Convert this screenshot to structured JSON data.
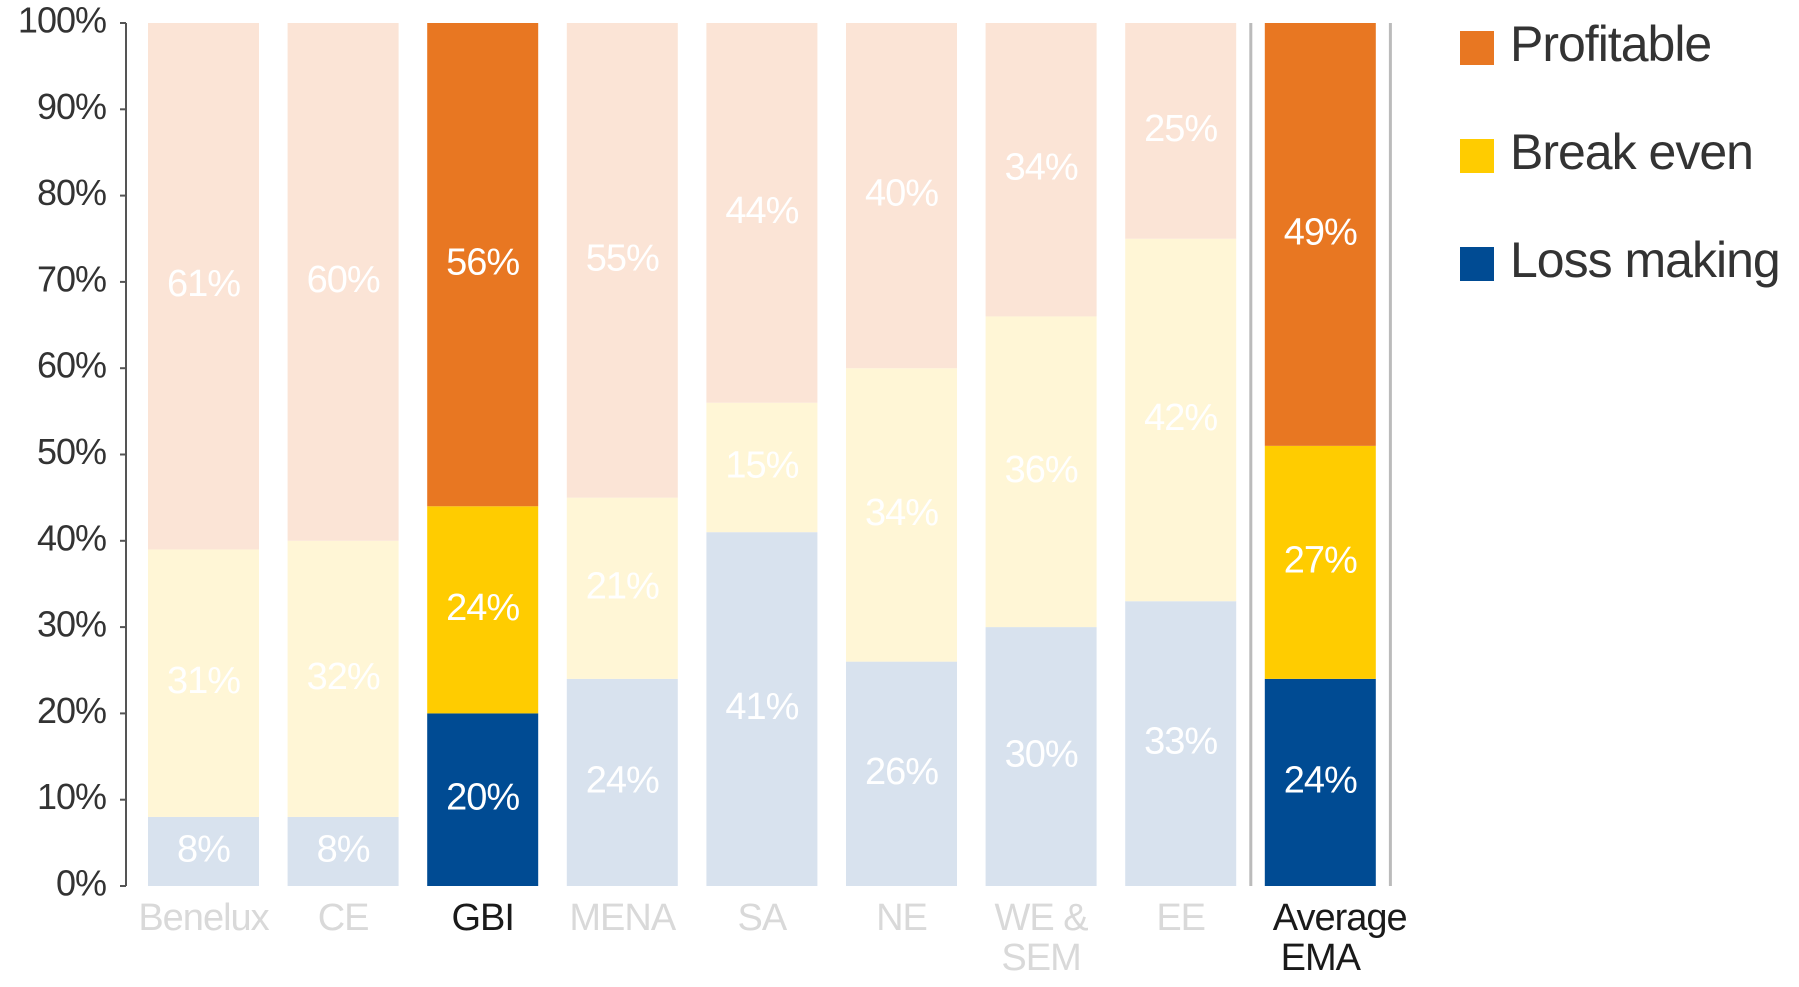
{
  "chart_data": {
    "type": "stacked_bar",
    "categories": [
      "Benelux",
      "CE",
      "GBI",
      "MENA",
      "SA",
      "NE",
      "WE & SEM",
      "EE",
      "Average EMA"
    ],
    "category_colors": [
      "#d9d9d9",
      "#d9d9d9",
      "#1a1a1a",
      "#d9d9d9",
      "#d9d9d9",
      "#d9d9d9",
      "#d9d9d9",
      "#d9d9d9",
      "#1a1a1a"
    ],
    "series": [
      {
        "name": "Loss making",
        "color": "#004b93",
        "values": [
          8,
          8,
          20,
          24,
          41,
          26,
          30,
          33,
          24
        ],
        "value_labels": [
          "8%",
          "8%",
          "20%",
          "24%",
          "41%",
          "26%",
          "30%",
          "33%",
          "24%"
        ],
        "colors": [
          "#d8e2ee",
          "#d8e2ee",
          "#004b93",
          "#d8e2ee",
          "#d8e2ee",
          "#d8e2ee",
          "#d8e2ee",
          "#d8e2ee",
          "#004b93"
        ]
      },
      {
        "name": "Break even",
        "color": "#ffcc00",
        "values": [
          31,
          32,
          24,
          21,
          15,
          34,
          36,
          42,
          27
        ],
        "value_labels": [
          "31%",
          "32%",
          "24%",
          "21%",
          "15%",
          "34%",
          "36%",
          "42%",
          "27%"
        ],
        "colors": [
          "#fff6d6",
          "#fff6d6",
          "#ffcc00",
          "#fff6d6",
          "#fff6d6",
          "#fff6d6",
          "#fff6d6",
          "#fff6d6",
          "#ffcc00"
        ]
      },
      {
        "name": "Profitable",
        "color": "#e87722",
        "values": [
          61,
          60,
          56,
          55,
          44,
          40,
          34,
          25,
          49
        ],
        "value_labels": [
          "61%",
          "60%",
          "56%",
          "55%",
          "44%",
          "40%",
          "34%",
          "25%",
          "49%"
        ],
        "colors": [
          "#fbe4d6",
          "#fbe4d6",
          "#e87722",
          "#fbe4d6",
          "#fbe4d6",
          "#fbe4d6",
          "#fbe4d6",
          "#fbe4d6",
          "#e87722"
        ]
      }
    ],
    "ylim": [
      0,
      100
    ],
    "yticks": [
      {
        "value": 0,
        "label": "0%"
      },
      {
        "value": 10,
        "label": "10%"
      },
      {
        "value": 20,
        "label": "20%"
      },
      {
        "value": 30,
        "label": "30%"
      },
      {
        "value": 40,
        "label": "40%"
      },
      {
        "value": 50,
        "label": "50%"
      },
      {
        "value": 60,
        "label": "60%"
      },
      {
        "value": 70,
        "label": "70%"
      },
      {
        "value": 80,
        "label": "80%"
      },
      {
        "value": 90,
        "label": "90%"
      },
      {
        "value": 100,
        "label": "100%"
      }
    ],
    "legend": "top-right"
  }
}
